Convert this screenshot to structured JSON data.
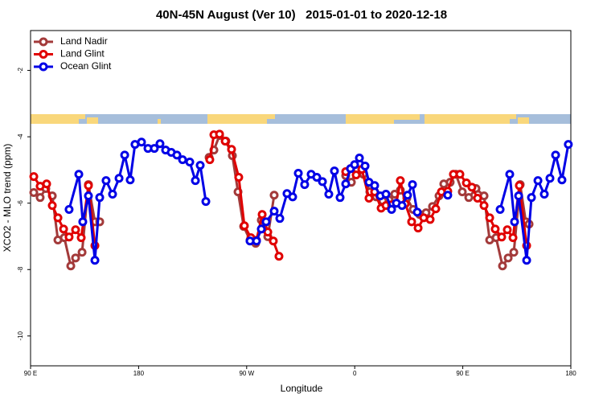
{
  "chart_data": {
    "type": "line",
    "title": "40N-45N August (Ver 10)   2015-01-01 to 2020-12-18",
    "x_label": "Longitude",
    "y_label": "XCO2 - MLO trend (ppm)",
    "xlim": [
      90,
      540
    ],
    "ylim": [
      -10.9,
      -0.8
    ],
    "xticks": [
      {
        "value": 90,
        "label": "90 E"
      },
      {
        "value": 180,
        "label": "180"
      },
      {
        "value": 270,
        "label": "90 W"
      },
      {
        "value": 360,
        "label": "0"
      },
      {
        "value": 450,
        "label": "90 E"
      },
      {
        "value": 540,
        "label": "180"
      }
    ],
    "yticks": [
      -10,
      -8,
      -6,
      -4,
      -2
    ],
    "legend": "top-left",
    "series": [
      {
        "name": "Land Nadir",
        "color": "#a33a3a",
        "x": [
          92.7,
          98.0,
          102.7,
          108.1,
          112.8,
          118.1,
          123.5,
          127.5,
          132.9,
          138.2,
          143.6,
          147.6,
          null,
          238.7,
          242.7,
          247.4,
          252.7,
          258.1,
          262.8,
          267.5,
          272.8,
          277.5,
          282.2,
          287.6,
          292.9,
          null,
          352.5,
          357.2,
          361.9,
          367.2,
          372.6,
          377.9,
          383.3,
          388.6,
          393.3,
          398.0,
          403.4,
          408.7,
          414.1,
          419.4,
          424.8,
          430.2,
          434.2,
          439.5,
          444.2,
          449.6,
          455.0,
          461.0,
          467.7,
          472.4,
          477.7,
          483.1,
          487.8,
          492.5,
          497.8,
          502.5,
          505.2
        ],
        "values": [
          -5.68,
          -5.83,
          -5.56,
          -5.78,
          -7.11,
          -7.04,
          -7.89,
          -7.65,
          -7.48,
          -5.44,
          -6.56,
          -6.56,
          null,
          -4.62,
          -4.4,
          -3.96,
          -4.13,
          -4.57,
          -5.66,
          -6.7,
          -7.12,
          -7.21,
          -6.51,
          -7.01,
          -5.76,
          null,
          -5.17,
          -5.37,
          -4.98,
          -5.13,
          -5.66,
          -5.81,
          -5.93,
          -5.9,
          -5.73,
          -5.61,
          -5.85,
          -6.19,
          -6.34,
          -6.29,
          -6.1,
          -5.78,
          -5.42,
          -5.37,
          -5.13,
          -5.66,
          -5.83,
          -5.56,
          -5.78,
          -7.11,
          -7.04,
          -7.89,
          -7.65,
          -7.48,
          -5.44,
          -6.56,
          -6.63
        ]
      },
      {
        "name": "Land Glint",
        "color": "#e00000",
        "x": [
          92.7,
          98.0,
          103.4,
          108.1,
          112.8,
          117.5,
          122.1,
          127.5,
          132.2,
          138.2,
          143.6,
          null,
          239.3,
          242.7,
          247.4,
          252.1,
          257.4,
          263.4,
          268.1,
          273.5,
          278.2,
          282.9,
          287.6,
          292.2,
          296.9,
          null,
          352.5,
          356.5,
          361.2,
          365.9,
          371.9,
          376.6,
          382.0,
          386.0,
          390.7,
          394.7,
          398.0,
          402.1,
          407.4,
          412.8,
          417.5,
          422.8,
          427.5,
          432.2,
          437.5,
          442.2,
          447.6,
          453.0,
          457.6,
          462.3,
          467.7,
          472.4,
          477.0,
          482.4,
          487.1,
          491.8,
          497.1,
          503.2
        ],
        "values": [
          -5.2,
          -5.49,
          -5.42,
          -6.07,
          -6.44,
          -6.78,
          -7.02,
          -6.8,
          -7.04,
          -5.47,
          -7.28,
          null,
          -4.69,
          -3.94,
          -3.92,
          -4.13,
          -4.38,
          -5.22,
          -6.68,
          -7.04,
          -7.12,
          -6.34,
          -6.87,
          -7.14,
          -7.6,
          null,
          -5.05,
          -4.96,
          -5.15,
          -4.98,
          -5.85,
          -5.66,
          -6.15,
          -6.07,
          -6.05,
          -6.0,
          -5.32,
          -6.02,
          -6.56,
          -6.75,
          -6.44,
          -6.49,
          -6.17,
          -5.66,
          -5.64,
          -5.13,
          -5.13,
          -5.39,
          -5.52,
          -5.85,
          -6.07,
          -6.44,
          -6.78,
          -7.02,
          -6.8,
          -7.04,
          -5.47,
          -7.28
        ]
      },
      {
        "name": "Ocean Glint",
        "color": "#0000e6",
        "x": [
          122.1,
          130.2,
          133.5,
          138.2,
          143.6,
          147.6,
          152.9,
          158.3,
          163.7,
          168.4,
          173.0,
          177.0,
          182.4,
          187.8,
          193.1,
          197.8,
          202.5,
          207.2,
          211.9,
          216.6,
          222.6,
          227.3,
          231.3,
          236.0,
          null,
          272.8,
          278.2,
          282.2,
          286.2,
          292.9,
          297.6,
          303.6,
          308.3,
          313.0,
          318.3,
          323.7,
          328.4,
          333.1,
          338.4,
          343.1,
          347.8,
          352.5,
          356.5,
          359.9,
          363.9,
          368.6,
          371.9,
          376.6,
          381.3,
          386.0,
          390.7,
          394.7,
          399.4,
          404.0,
          408.1,
          412.1,
          null,
          437.5,
          null,
          481.1,
          489.1,
          493.1,
          496.5,
          503.2,
          507.2,
          512.6,
          517.9,
          522.6,
          527.3,
          532.6,
          537.9
        ],
        "values": [
          -6.19,
          -5.13,
          -6.56,
          -5.78,
          -7.72,
          -5.83,
          -5.32,
          -5.73,
          -5.25,
          -4.55,
          -5.3,
          -4.23,
          -4.16,
          -4.35,
          -4.35,
          -4.21,
          -4.4,
          -4.47,
          -4.55,
          -4.69,
          -4.76,
          -5.32,
          -4.86,
          -5.95,
          null,
          -7.14,
          -7.14,
          -6.78,
          -6.56,
          -6.24,
          -6.46,
          -5.71,
          -5.81,
          -5.1,
          -5.44,
          -5.13,
          -5.22,
          -5.35,
          -5.73,
          -5.03,
          -5.83,
          -5.42,
          -4.96,
          -4.84,
          -4.64,
          -4.88,
          -5.37,
          -5.47,
          -5.78,
          -5.73,
          -6.19,
          -6.0,
          -6.07,
          -5.76,
          -5.44,
          -6.27,
          null,
          -5.76,
          null,
          -6.19,
          -5.13,
          -6.56,
          -5.78,
          -7.72,
          -5.83,
          -5.32,
          -5.73,
          -5.25,
          -4.55,
          -5.3,
          -4.23
        ]
      }
    ]
  }
}
